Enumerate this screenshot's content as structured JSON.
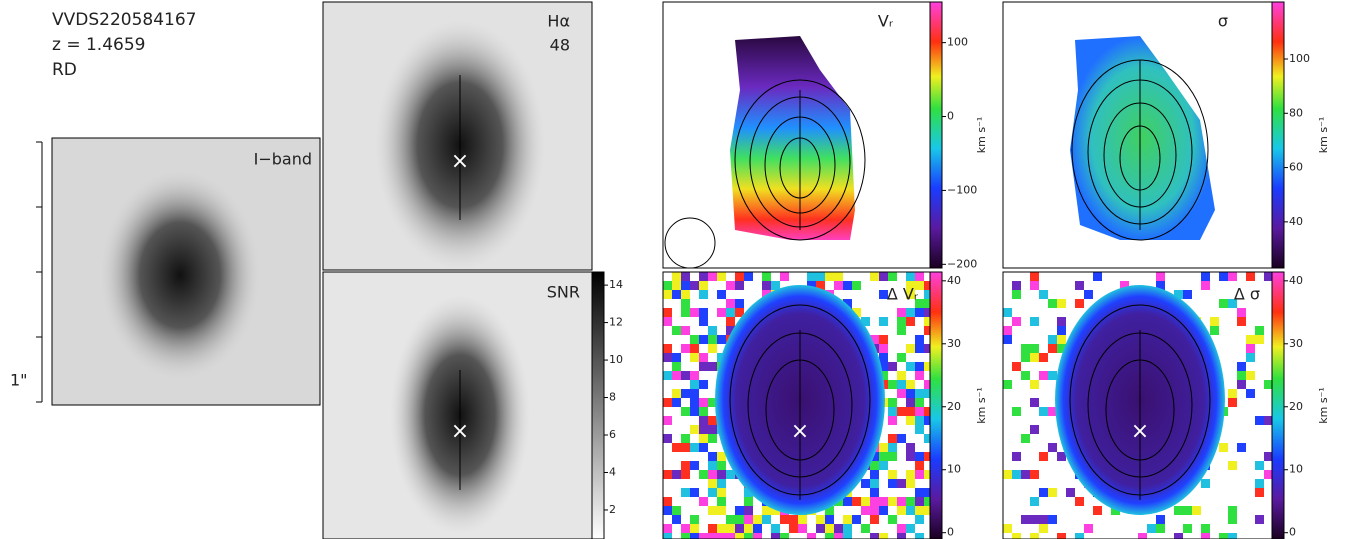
{
  "header": {
    "object": "VVDS220584167",
    "redshift": "z = 1.4659",
    "class": "RD"
  },
  "panels": {
    "iband": {
      "label": "I−band"
    },
    "halpha": {
      "label": "Hα",
      "value": "48"
    },
    "snr": {
      "label": "SNR",
      "colorbar": {
        "lim": [
          0.45,
          14.7
        ],
        "ticks": [
          2,
          4,
          6,
          8,
          10,
          12,
          14
        ]
      }
    },
    "vr": {
      "label": "Vᵣ",
      "colorbar": {
        "lim": [
          -205,
          155
        ],
        "ticks": [
          {
            "value": -200,
            "label": "−200"
          },
          {
            "value": -100,
            "label": "−100"
          },
          0,
          100
        ]
      }
    },
    "sigma": {
      "label": "σ",
      "colorbar": {
        "lim": [
          23,
          121
        ],
        "ticks": [
          40,
          60,
          80,
          100
        ]
      }
    },
    "dvr": {
      "label": "Δ Vᵣ",
      "colorbar": {
        "lim": [
          -1,
          41.4
        ],
        "ticks": [
          0,
          10,
          20,
          30,
          40
        ]
      }
    },
    "dsigma": {
      "label": "Δ σ",
      "colorbar": {
        "lim": [
          -1,
          41.4
        ],
        "ticks": [
          0,
          10,
          20,
          30,
          40
        ]
      }
    }
  },
  "units": "km s⁻¹",
  "scale": "1\""
}
